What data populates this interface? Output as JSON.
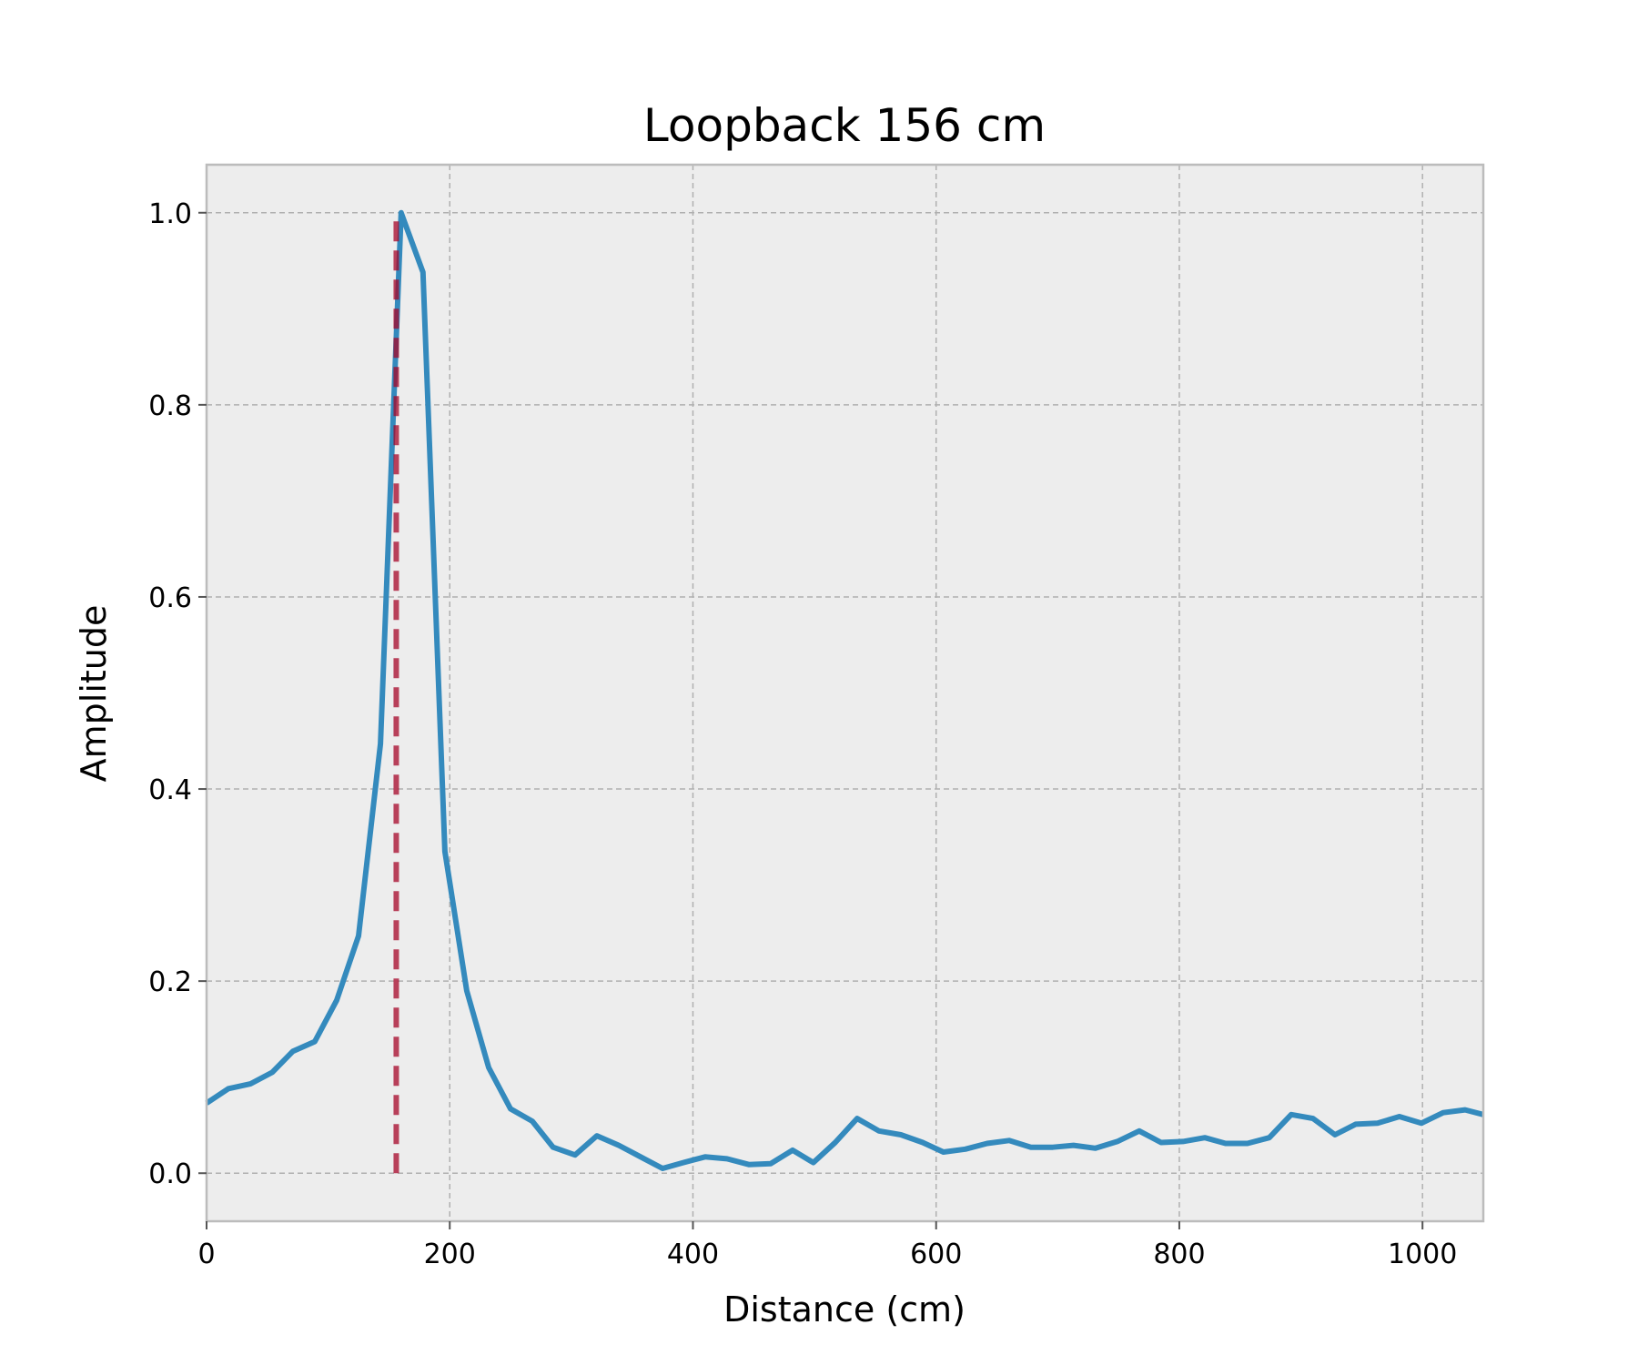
{
  "chart_data": {
    "type": "line",
    "title": "Loopback 156 cm",
    "xlabel": "Distance (cm)",
    "ylabel": "Amplitude",
    "xlim": [
      0,
      1050
    ],
    "ylim": [
      -0.05,
      1.05
    ],
    "xticks": [
      0,
      200,
      400,
      600,
      800,
      1000
    ],
    "xtick_labels": [
      "0",
      "200",
      "400",
      "600",
      "800",
      "1000"
    ],
    "yticks": [
      0.0,
      0.2,
      0.4,
      0.6,
      0.8,
      1.0
    ],
    "ytick_labels": [
      "0.0",
      "0.2",
      "0.4",
      "0.6",
      "0.8",
      "1.0"
    ],
    "grid": true,
    "background_color": "#ededed",
    "series": [
      {
        "color": "#348abd",
        "x": [
          0,
          18,
          36,
          54,
          71,
          89,
          107,
          125,
          143,
          160,
          178,
          196,
          214,
          232,
          250,
          268,
          285,
          303,
          321,
          339,
          357,
          375,
          392,
          410,
          428,
          446,
          464,
          482,
          499,
          517,
          535,
          553,
          571,
          589,
          606,
          624,
          642,
          660,
          678,
          696,
          713,
          731,
          749,
          767,
          785,
          803,
          821,
          838,
          856,
          874,
          892,
          910,
          928,
          945,
          963,
          981,
          999,
          1017,
          1035,
          1050
        ],
        "y": [
          0.073,
          0.088,
          0.093,
          0.105,
          0.127,
          0.137,
          0.18,
          0.247,
          0.447,
          1.0,
          0.938,
          0.335,
          0.19,
          0.11,
          0.067,
          0.054,
          0.027,
          0.019,
          0.039,
          0.029,
          0.017,
          0.005,
          0.011,
          0.017,
          0.015,
          0.009,
          0.01,
          0.024,
          0.011,
          0.032,
          0.057,
          0.044,
          0.04,
          0.032,
          0.022,
          0.025,
          0.031,
          0.034,
          0.027,
          0.027,
          0.029,
          0.026,
          0.033,
          0.044,
          0.032,
          0.033,
          0.037,
          0.031,
          0.031,
          0.037,
          0.061,
          0.057,
          0.04,
          0.051,
          0.052,
          0.059,
          0.052,
          0.063,
          0.066,
          0.061
        ]
      }
    ],
    "vline": {
      "x": 156,
      "y_from": 0.0,
      "y_to": 1.0,
      "color": "#a60628",
      "style": "dashed"
    }
  }
}
